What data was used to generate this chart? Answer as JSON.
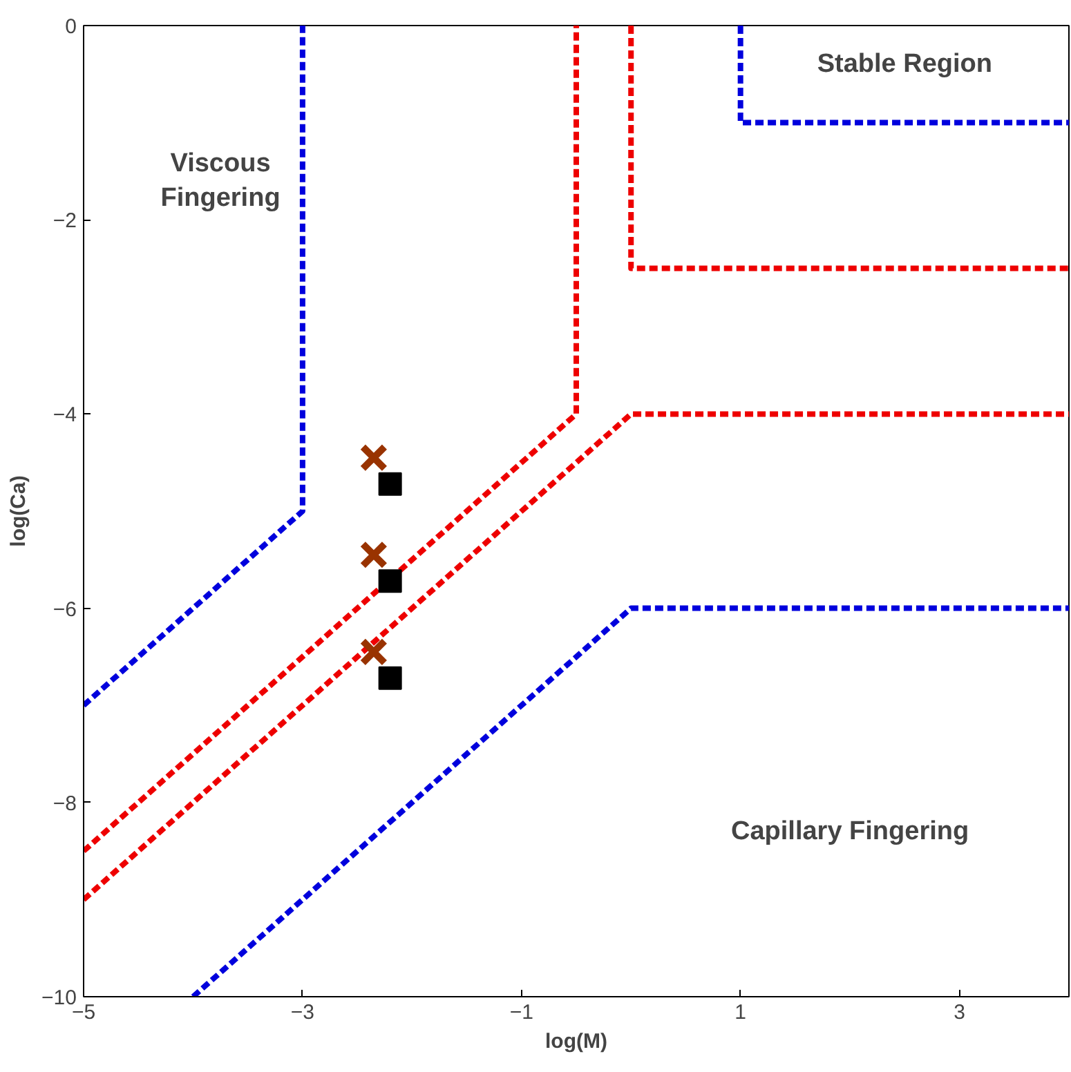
{
  "chart_data": {
    "type": "line",
    "xlabel": "log(M)",
    "ylabel": "log(Ca)",
    "xlim": [
      -5,
      4
    ],
    "ylim": [
      -10,
      0
    ],
    "xticks": [
      -5,
      -3,
      -1,
      1,
      3
    ],
    "yticks": [
      0,
      -2,
      -4,
      -6,
      -8,
      -10
    ],
    "grid": false,
    "line_style": "dashed",
    "marker": "none",
    "series": [
      {
        "color": "#0000dd",
        "x": [
          -5,
          -3,
          -3
        ],
        "values": [
          -7,
          -5,
          0
        ]
      },
      {
        "color": "#ee0000",
        "x": [
          -5,
          -0.5,
          -0.5
        ],
        "values": [
          -8.5,
          -4,
          0
        ]
      },
      {
        "color": "#ee0000",
        "x": [
          -5,
          0,
          4
        ],
        "values": [
          -9,
          -4,
          -4
        ]
      },
      {
        "color": "#ee0000",
        "x": [
          0,
          0,
          4
        ],
        "values": [
          0,
          -2.5,
          -2.5
        ]
      },
      {
        "color": "#0000dd",
        "x": [
          -4,
          0,
          4
        ],
        "values": [
          -10,
          -6,
          -6
        ]
      },
      {
        "color": "#0000dd",
        "x": [
          1,
          1,
          4
        ],
        "values": [
          0,
          -1,
          -1
        ]
      },
      {
        "type": "scatter",
        "marker": "cross",
        "color": "#993300",
        "x": [
          -2.35,
          -2.35,
          -2.35
        ],
        "values": [
          -4.45,
          -5.45,
          -6.45
        ]
      },
      {
        "type": "scatter",
        "marker": "square",
        "color": "#000000",
        "x": [
          -2.2,
          -2.2,
          -2.2
        ],
        "values": [
          -4.72,
          -5.72,
          -6.72
        ]
      }
    ],
    "annotations": [
      "Viscous\nFingering",
      "Stable Region",
      "Capillary Fingering"
    ]
  }
}
